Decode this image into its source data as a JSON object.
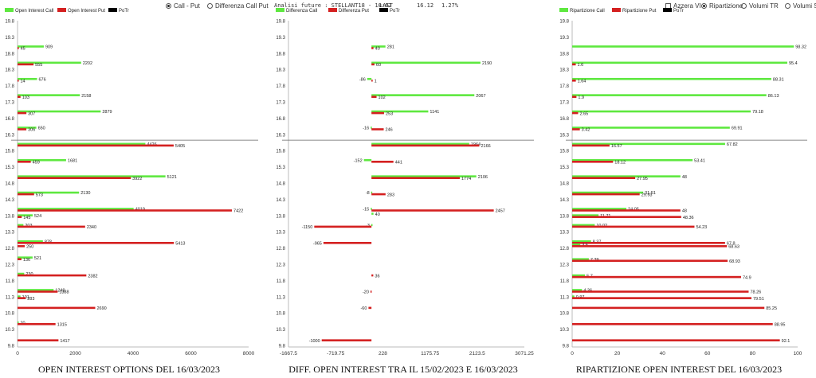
{
  "controls": {
    "call_put": "Call - Put",
    "diff_call_put": "Differenza Call Put",
    "analysis_label": "Analisi future : STELLANT18 - 10:02",
    "last_label": "LAST",
    "last_value": "16.12",
    "last_change": "1.27%",
    "azzera_vi": "Azzera VI",
    "ripartizione": "Ripartizione",
    "volumi_tr": "Volumi TR",
    "volumi_st": "Volumi ST"
  },
  "colors": {
    "call": "#5ee83f",
    "put": "#d42020",
    "potr": "#000000",
    "potr_band": "#8c6d1f",
    "last_line": "#666666"
  },
  "titles": {
    "left": "OPEN INTEREST OPTIONS DEL 16/03/2023",
    "middle": "DIFF. OPEN INTEREST TRA IL 15/02/2023 E 16/03/2023",
    "right": "RIPARTIZIONE OPEN INTEREST DEL 16/03/2023"
  },
  "chart_data": [
    {
      "type": "bar",
      "title": "OPEN INTEREST OPTIONS DEL 16/03/2023",
      "legend": [
        "Open Interest Call",
        "Open Interest Put",
        "PoTr"
      ],
      "ylim": [
        9.8,
        19.8
      ],
      "xlim": [
        0,
        8000
      ],
      "xticks": [
        "0",
        "2000",
        "4000",
        "6000",
        "8000"
      ],
      "strikes": [
        19.8,
        19.3,
        18.8,
        18.3,
        17.8,
        17.3,
        16.8,
        16.3,
        15.8,
        15.3,
        14.8,
        14.3,
        13.8,
        13.3,
        12.8,
        12.3,
        11.8,
        11.3,
        10.8,
        10.3,
        9.8
      ],
      "bars": [
        {
          "y": 19.0,
          "value": 909,
          "series": "call",
          "label": "909"
        },
        {
          "y": 18.95,
          "value": 45,
          "series": "put",
          "label": "45"
        },
        {
          "y": 18.5,
          "value": 2202,
          "series": "call",
          "label": "2202"
        },
        {
          "y": 18.45,
          "value": 555,
          "series": "put",
          "label": "555"
        },
        {
          "y": 18.0,
          "value": 676,
          "series": "call",
          "label": "676"
        },
        {
          "y": 17.95,
          "value": 14,
          "series": "put",
          "label": "14"
        },
        {
          "y": 17.5,
          "value": 2158,
          "series": "call",
          "label": "2158"
        },
        {
          "y": 17.45,
          "value": 103,
          "series": "put",
          "label": "103"
        },
        {
          "y": 17.0,
          "value": 2879,
          "series": "call",
          "label": "2879"
        },
        {
          "y": 16.95,
          "value": 307,
          "series": "put",
          "label": "307"
        },
        {
          "y": 16.5,
          "value": 650,
          "series": "call",
          "label": "650"
        },
        {
          "y": 16.45,
          "value": 306,
          "series": "put",
          "label": "306"
        },
        {
          "y": 16.0,
          "value": 4426,
          "series": "call",
          "label": "4426"
        },
        {
          "y": 15.95,
          "value": 5405,
          "series": "put",
          "label": "5405"
        },
        {
          "y": 15.5,
          "value": 1681,
          "series": "call",
          "label": "1681"
        },
        {
          "y": 15.45,
          "value": 459,
          "series": "put",
          "label": "459"
        },
        {
          "y": 15.0,
          "value": 5121,
          "series": "call",
          "label": "5121"
        },
        {
          "y": 14.95,
          "value": 3922,
          "series": "put",
          "label": "3922"
        },
        {
          "y": 14.5,
          "value": 2130,
          "series": "call",
          "label": "2130"
        },
        {
          "y": 14.45,
          "value": 573,
          "series": "put",
          "label": "573"
        },
        {
          "y": 14.0,
          "value": 4019,
          "series": "call",
          "label": "4019"
        },
        {
          "y": 13.95,
          "value": 7422,
          "series": "put",
          "label": "7422"
        },
        {
          "y": 13.8,
          "value": 524,
          "series": "call",
          "label": "524"
        },
        {
          "y": 13.75,
          "value": 145,
          "series": "put",
          "label": "145"
        },
        {
          "y": 13.5,
          "value": 203,
          "series": "call",
          "label": "203"
        },
        {
          "y": 13.45,
          "value": 2340,
          "series": "put",
          "label": "2340"
        },
        {
          "y": 13.0,
          "value": 878,
          "series": "call",
          "label": "878"
        },
        {
          "y": 12.95,
          "value": 5413,
          "series": "put",
          "label": "5413"
        },
        {
          "y": 12.85,
          "value": 250,
          "series": "put",
          "label": "250"
        },
        {
          "y": 12.5,
          "value": 521,
          "series": "call",
          "label": "521"
        },
        {
          "y": 12.45,
          "value": 136,
          "series": "put",
          "label": "136"
        },
        {
          "y": 12.0,
          "value": 230,
          "series": "call",
          "label": "230"
        },
        {
          "y": 11.95,
          "value": 2382,
          "series": "put",
          "label": "2382"
        },
        {
          "y": 11.5,
          "value": 1249,
          "series": "call",
          "label": "1249"
        },
        {
          "y": 11.45,
          "value": 1388,
          "series": "put",
          "label": "1388"
        },
        {
          "y": 11.3,
          "value": 101,
          "series": "call",
          "label": "101"
        },
        {
          "y": 11.25,
          "value": 283,
          "series": "put",
          "label": "283"
        },
        {
          "y": 10.95,
          "value": 2690,
          "series": "put",
          "label": "2690"
        },
        {
          "y": 10.5,
          "value": 20,
          "series": "call",
          "label": "20"
        },
        {
          "y": 10.45,
          "value": 1315,
          "series": "put",
          "label": "1315"
        },
        {
          "y": 9.95,
          "value": 1417,
          "series": "put",
          "label": "1417"
        }
      ],
      "last_price": 16.12
    },
    {
      "type": "bar",
      "title": "DIFF. OPEN INTEREST TRA IL 15/02/2023 E 16/03/2023",
      "legend": [
        "Differenza Call",
        "Differenza Put",
        "PoTr"
      ],
      "ylim": [
        9.8,
        19.8
      ],
      "xlim": [
        -1667.5,
        3071.25
      ],
      "xticks": [
        "-1667.5",
        "-719.75",
        "228",
        "1175.75",
        "2123.5",
        "3071.25"
      ],
      "strikes": [
        19.8,
        19.3,
        18.8,
        18.3,
        17.8,
        17.3,
        16.8,
        16.3,
        15.8,
        15.3,
        14.8,
        14.3,
        13.8,
        13.3,
        12.8,
        12.3,
        11.8,
        11.3,
        10.8,
        10.3,
        9.8
      ],
      "bars": [
        {
          "y": 19.0,
          "value": 281,
          "series": "call",
          "label": "281"
        },
        {
          "y": 18.95,
          "value": 40,
          "series": "put",
          "label": "40"
        },
        {
          "y": 18.5,
          "value": 2190,
          "series": "call",
          "label": "2190"
        },
        {
          "y": 18.45,
          "value": 60,
          "series": "put",
          "label": "60"
        },
        {
          "y": 18.0,
          "value": -86,
          "series": "call",
          "label": "-86"
        },
        {
          "y": 17.95,
          "value": 1,
          "series": "put",
          "label": "1"
        },
        {
          "y": 17.5,
          "value": 2067,
          "series": "call",
          "label": "2067"
        },
        {
          "y": 17.45,
          "value": 102,
          "series": "put",
          "label": "102"
        },
        {
          "y": 17.0,
          "value": 1141,
          "series": "call",
          "label": "1141"
        },
        {
          "y": 16.95,
          "value": 253,
          "series": "put",
          "label": "253"
        },
        {
          "y": 16.5,
          "value": -16,
          "series": "call",
          "label": "-16"
        },
        {
          "y": 16.45,
          "value": 246,
          "series": "put",
          "label": "246"
        },
        {
          "y": 16.0,
          "value": 1964,
          "series": "call",
          "label": "1964"
        },
        {
          "y": 15.95,
          "value": 2166,
          "series": "put",
          "label": "2166"
        },
        {
          "y": 15.5,
          "value": -152,
          "series": "call",
          "label": "-152"
        },
        {
          "y": 15.45,
          "value": 441,
          "series": "put",
          "label": "441"
        },
        {
          "y": 15.0,
          "value": 2106,
          "series": "call",
          "label": "2106"
        },
        {
          "y": 14.95,
          "value": 1774,
          "series": "put",
          "label": "1774"
        },
        {
          "y": 14.5,
          "value": -8,
          "series": "call",
          "label": "-8"
        },
        {
          "y": 14.45,
          "value": 283,
          "series": "put",
          "label": "283"
        },
        {
          "y": 14.0,
          "value": -15,
          "series": "call",
          "label": "-15"
        },
        {
          "y": 13.95,
          "value": 2457,
          "series": "put",
          "label": "2457"
        },
        {
          "y": 13.85,
          "value": 40,
          "series": "call",
          "label": "40"
        },
        {
          "y": 13.5,
          "value": -3,
          "series": "call",
          "label": "-3"
        },
        {
          "y": 13.45,
          "value": -1150,
          "series": "put",
          "label": "-1150"
        },
        {
          "y": 12.95,
          "value": -965,
          "series": "put",
          "label": "-965"
        },
        {
          "y": 11.95,
          "value": 36,
          "series": "put",
          "label": "36"
        },
        {
          "y": 11.45,
          "value": -20,
          "series": "put",
          "label": "-20"
        },
        {
          "y": 10.95,
          "value": -60,
          "series": "put",
          "label": "-60"
        },
        {
          "y": 9.95,
          "value": -1000,
          "series": "put",
          "label": "-1000"
        }
      ],
      "last_price": 16.12
    },
    {
      "type": "bar",
      "title": "RIPARTIZIONE OPEN INTEREST DEL 16/03/2023",
      "legend": [
        "Ripartizione Call",
        "Ripartizione Put",
        "PoTr"
      ],
      "ylim": [
        9.8,
        19.8
      ],
      "xlim": [
        0,
        100
      ],
      "xticks": [
        "0",
        "20",
        "40",
        "60",
        "80",
        "100"
      ],
      "strikes": [
        19.8,
        19.3,
        18.8,
        18.3,
        17.8,
        17.3,
        16.8,
        16.3,
        15.8,
        15.3,
        14.8,
        14.3,
        13.8,
        13.3,
        12.8,
        12.3,
        11.8,
        11.3,
        10.8,
        10.3,
        9.8
      ],
      "bars": [
        {
          "y": 19.0,
          "value": 98.32,
          "series": "call",
          "label": "98.32"
        },
        {
          "y": 18.5,
          "value": 95.4,
          "series": "call",
          "label": "95.4"
        },
        {
          "y": 18.45,
          "value": 1.6,
          "series": "put",
          "label": "1.6"
        },
        {
          "y": 18.0,
          "value": 88.31,
          "series": "call",
          "label": "88.31"
        },
        {
          "y": 17.95,
          "value": 1.64,
          "series": "put",
          "label": "1.64"
        },
        {
          "y": 17.5,
          "value": 86.13,
          "series": "call",
          "label": "86.13"
        },
        {
          "y": 17.45,
          "value": 1.9,
          "series": "put",
          "label": "1.9"
        },
        {
          "y": 17.0,
          "value": 79.18,
          "series": "call",
          "label": "79.18"
        },
        {
          "y": 16.95,
          "value": 2.65,
          "series": "put",
          "label": "2.65"
        },
        {
          "y": 16.5,
          "value": 69.91,
          "series": "call",
          "label": "69.91"
        },
        {
          "y": 16.45,
          "value": 3.42,
          "series": "put",
          "label": "3.42"
        },
        {
          "y": 16.0,
          "value": 67.82,
          "series": "call",
          "label": "67.82"
        },
        {
          "y": 15.95,
          "value": 16.57,
          "series": "put",
          "label": "16.57"
        },
        {
          "y": 15.5,
          "value": 53.41,
          "series": "call",
          "label": "53.41"
        },
        {
          "y": 15.45,
          "value": 18.12,
          "series": "put",
          "label": "18.12"
        },
        {
          "y": 15.0,
          "value": 48,
          "series": "call",
          "label": "48"
        },
        {
          "y": 14.95,
          "value": 27.95,
          "series": "put",
          "label": "27.95"
        },
        {
          "y": 14.5,
          "value": 31.51,
          "series": "call",
          "label": "31.51"
        },
        {
          "y": 14.45,
          "value": 29.93,
          "series": "put",
          "label": "29.93"
        },
        {
          "y": 14.0,
          "value": 24.05,
          "series": "call",
          "label": "24.05"
        },
        {
          "y": 13.95,
          "value": 48,
          "series": "put",
          "label": "48"
        },
        {
          "y": 13.8,
          "value": 11.71,
          "series": "call",
          "label": "11.71"
        },
        {
          "y": 13.75,
          "value": 48.36,
          "series": "put",
          "label": "48.36"
        },
        {
          "y": 13.5,
          "value": 10.02,
          "series": "call",
          "label": "10.02"
        },
        {
          "y": 13.45,
          "value": 54.23,
          "series": "put",
          "label": "54.23"
        },
        {
          "y": 13.0,
          "value": 8.37,
          "series": "call",
          "label": "8.37"
        },
        {
          "y": 12.95,
          "value": 67.8,
          "series": "put",
          "label": "67.8"
        },
        {
          "y": 12.9,
          "value": 3.6,
          "series": "call",
          "label": "3.6"
        },
        {
          "y": 12.85,
          "value": 68.63,
          "series": "put",
          "label": "68.63"
        },
        {
          "y": 12.45,
          "value": 7.39,
          "series": "call",
          "label": "7.39"
        },
        {
          "y": 12.4,
          "value": 68.93,
          "series": "put",
          "label": "68.93"
        },
        {
          "y": 11.95,
          "value": 5.7,
          "series": "call",
          "label": "5.7"
        },
        {
          "y": 11.9,
          "value": 74.9,
          "series": "put",
          "label": "74.9"
        },
        {
          "y": 11.5,
          "value": 4.36,
          "series": "call",
          "label": "4.36"
        },
        {
          "y": 11.45,
          "value": 78.26,
          "series": "put",
          "label": "78.26"
        },
        {
          "y": 11.3,
          "value": 0.97,
          "series": "call",
          "label": "0.97"
        },
        {
          "y": 11.25,
          "value": 79.51,
          "series": "put",
          "label": "79.51"
        },
        {
          "y": 10.95,
          "value": 85.25,
          "series": "put",
          "label": "85.25"
        },
        {
          "y": 10.45,
          "value": 88.95,
          "series": "put",
          "label": "88.95"
        },
        {
          "y": 9.95,
          "value": 92.1,
          "series": "put",
          "label": "92.1"
        }
      ],
      "last_price": 16.12
    }
  ]
}
